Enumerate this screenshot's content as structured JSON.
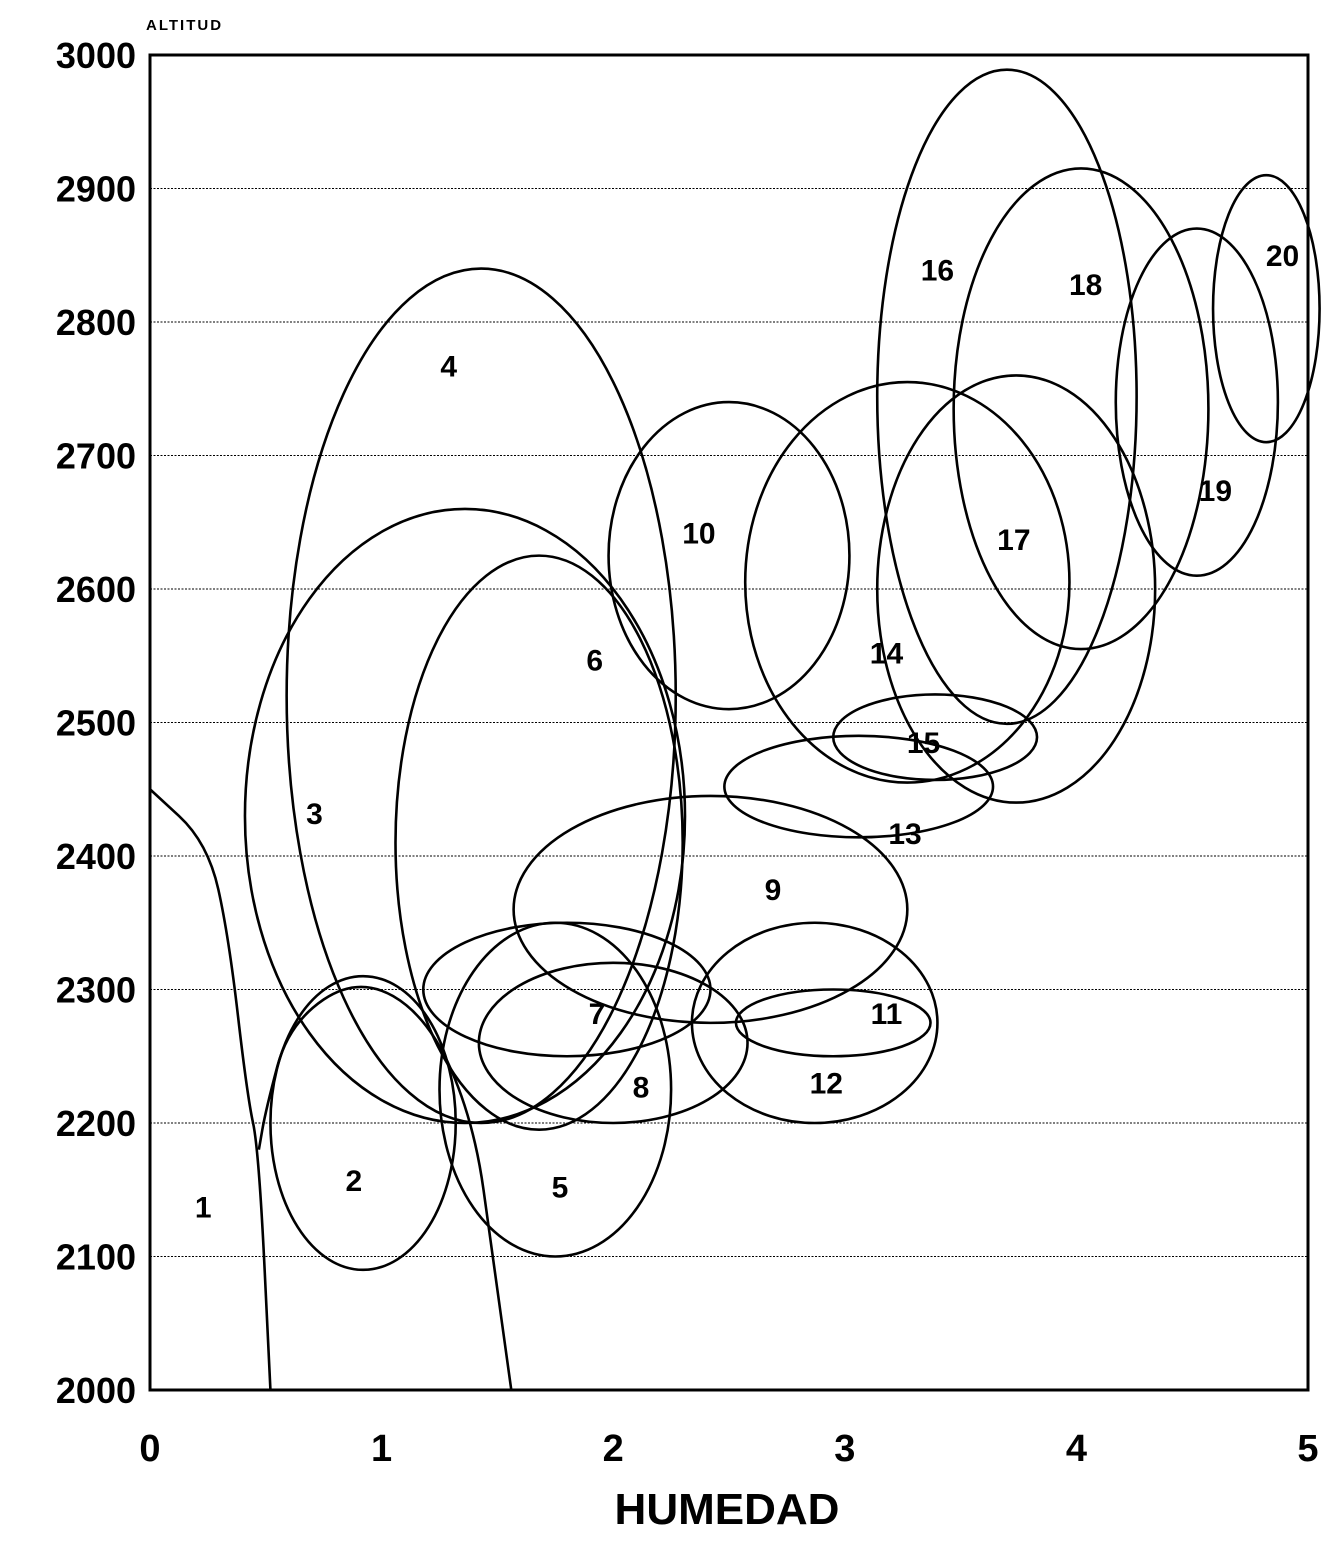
{
  "chart_data": {
    "type": "scatter",
    "title": "",
    "xlabel": "HUMEDAD",
    "ylabel": "ALTITUD",
    "xlim": [
      0,
      5
    ],
    "ylim": [
      2000,
      3000
    ],
    "x_ticks": [
      "0",
      "1",
      "2",
      "3",
      "4",
      "5"
    ],
    "y_ticks": [
      "2000",
      "2100",
      "2200",
      "2300",
      "2400",
      "2500",
      "2600",
      "2700",
      "2800",
      "2900",
      "3000"
    ],
    "grid": "horizontal",
    "zones": [
      {
        "label": "1",
        "label_x": 0.23,
        "label_y": 2135
      },
      {
        "label": "2",
        "label_x": 0.88,
        "label_y": 2155,
        "center_x": 0.92,
        "center_y": 2200,
        "radius_x": 0.4,
        "radius_y": 110
      },
      {
        "label": "3",
        "label_x": 0.71,
        "label_y": 2430,
        "center_x": 1.36,
        "center_y": 2430,
        "radius_x": 0.95,
        "radius_y": 230
      },
      {
        "label": "4",
        "label_x": 1.29,
        "label_y": 2765,
        "center_x": 1.43,
        "center_y": 2520,
        "radius_x": 0.84,
        "radius_y": 320
      },
      {
        "label": "5",
        "label_x": 1.77,
        "label_y": 2150,
        "center_x": 1.75,
        "center_y": 2225,
        "radius_x": 0.5,
        "radius_y": 125
      },
      {
        "label": "6",
        "label_x": 1.92,
        "label_y": 2545,
        "center_x": 1.68,
        "center_y": 2410,
        "radius_x": 0.62,
        "radius_y": 215
      },
      {
        "label": "7",
        "label_x": 1.93,
        "label_y": 2280,
        "center_x": 1.8,
        "center_y": 2300,
        "radius_x": 0.62,
        "radius_y": 50
      },
      {
        "label": "8",
        "label_x": 2.12,
        "label_y": 2225,
        "center_x": 2.0,
        "center_y": 2260,
        "radius_x": 0.58,
        "radius_y": 60
      },
      {
        "label": "9",
        "label_x": 2.69,
        "label_y": 2373,
        "center_x": 2.42,
        "center_y": 2360,
        "radius_x": 0.85,
        "radius_y": 85
      },
      {
        "label": "10",
        "label_x": 2.37,
        "label_y": 2640,
        "center_x": 2.5,
        "center_y": 2625,
        "radius_x": 0.52,
        "radius_y": 115
      },
      {
        "label": "11",
        "label_x": 3.18,
        "label_y": 2280,
        "center_x": 2.95,
        "center_y": 2275,
        "radius_x": 0.42,
        "radius_y": 25
      },
      {
        "label": "12",
        "label_x": 2.92,
        "label_y": 2228,
        "center_x": 2.87,
        "center_y": 2275,
        "radius_x": 0.53,
        "radius_y": 75
      },
      {
        "label": "13",
        "label_x": 3.26,
        "label_y": 2415,
        "center_x": 3.06,
        "center_y": 2452,
        "radius_x": 0.58,
        "radius_y": 38
      },
      {
        "label": "14",
        "label_x": 3.18,
        "label_y": 2550,
        "center_x": 3.27,
        "center_y": 2605,
        "radius_x": 0.7,
        "radius_y": 150
      },
      {
        "label": "15",
        "label_x": 3.34,
        "label_y": 2483,
        "center_x": 3.39,
        "center_y": 2489,
        "radius_x": 0.44,
        "radius_y": 32
      },
      {
        "label": "16",
        "label_x": 3.4,
        "label_y": 2837,
        "center_x": 3.7,
        "center_y": 2744,
        "radius_x": 0.56,
        "radius_y": 245
      },
      {
        "label": "17",
        "label_x": 3.73,
        "label_y": 2635,
        "center_x": 3.74,
        "center_y": 2600,
        "radius_x": 0.6,
        "radius_y": 160
      },
      {
        "label": "18",
        "label_x": 4.04,
        "label_y": 2826,
        "center_x": 4.02,
        "center_y": 2735,
        "radius_x": 0.55,
        "radius_y": 180
      },
      {
        "label": "19",
        "label_x": 4.6,
        "label_y": 2672,
        "center_x": 4.52,
        "center_y": 2740,
        "radius_x": 0.35,
        "radius_y": 130
      },
      {
        "label": "20",
        "label_x": 4.89,
        "label_y": 2848,
        "center_x": 4.82,
        "center_y": 2810,
        "radius_x": 0.23,
        "radius_y": 100
      }
    ],
    "boundary_curves": [
      {
        "points": [
          [
            0.0,
            2450
          ],
          [
            0.25,
            2410
          ],
          [
            0.34,
            2340
          ],
          [
            0.42,
            2220
          ],
          [
            0.47,
            2180
          ],
          [
            0.52,
            2000
          ]
        ]
      },
      {
        "points": [
          [
            0.47,
            2180
          ],
          [
            0.5,
            2210
          ],
          [
            0.6,
            2275
          ],
          [
            0.9,
            2310
          ],
          [
            1.2,
            2280
          ],
          [
            1.4,
            2200
          ],
          [
            1.48,
            2100
          ],
          [
            1.56,
            2000
          ]
        ]
      }
    ]
  }
}
